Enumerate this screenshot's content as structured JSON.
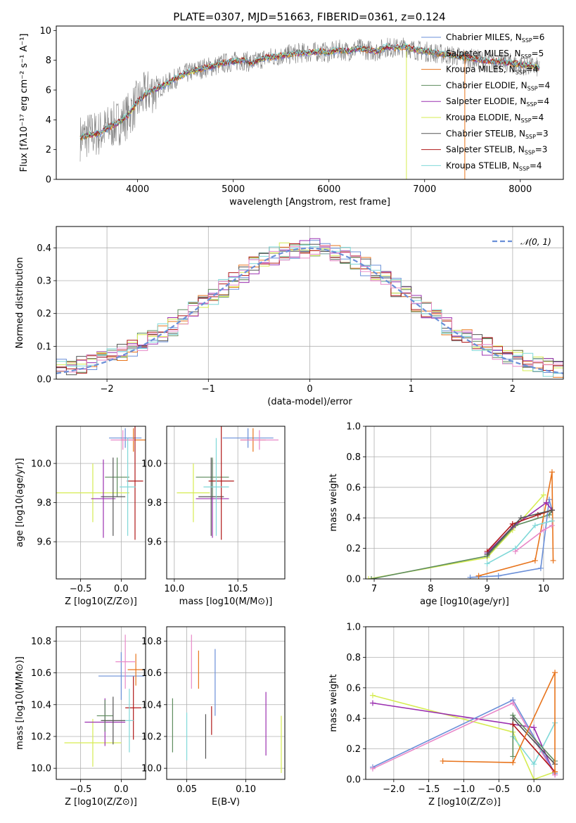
{
  "title": "PLATE=0307, MJD=51663, FIBERID=0361, z=0.124",
  "colors": {
    "Chabrier MILES": "#6a8fd8",
    "Salpeter MILES": "#8a8a8a",
    "Kroupa MILES": "#e8741c",
    "Chabrier ELODIE": "#5e8c5e",
    "Salpeter ELODIE": "#9b30b0",
    "Kroupa ELODIE": "#d6ec52",
    "Chabrier STELIB": "#555555",
    "Salpeter STELIB": "#b01818",
    "Kroupa STELIB": "#7fd8d8",
    "pink": "#e888c8",
    "normal": "#6a8fd8"
  },
  "chart_data": [
    {
      "id": "spectrum",
      "type": "line",
      "xlabel": "wavelength [Angstrom, rest frame]",
      "ylabel": "Flux [fλ10⁻¹⁷ erg cm⁻² s⁻¹ A⁻¹]",
      "xlim": [
        3150,
        8450
      ],
      "ylim": [
        0,
        10.3
      ],
      "xticks": [
        "4000",
        "5000",
        "6000",
        "7000",
        "8000"
      ],
      "yticks": [
        "0",
        "2",
        "4",
        "6",
        "8",
        "10"
      ],
      "legend": [
        "Chabrier MILES, N_SSP=6",
        "Salpeter MILES, N_SSP=5",
        "Kroupa MILES, N_SSP=4",
        "Chabrier ELODIE, N_SSP=4",
        "Salpeter ELODIE, N_SSP=4",
        "Kroupa ELODIE, N_SSP=4",
        "Chabrier STELIB, N_SSP=3",
        "Salpeter STELIB, N_SSP=3",
        "Kroupa STELIB, N_SSP=4"
      ],
      "legend_labels": [
        {
          "name": "Chabrier MILES, N",
          "sub": "SSP",
          "suffix": "=6"
        },
        {
          "name": "Salpeter MILES, N",
          "sub": "SSP",
          "suffix": "=5"
        },
        {
          "name": "Kroupa MILES, N",
          "sub": "SSP",
          "suffix": "=4"
        },
        {
          "name": "Chabrier ELODIE, N",
          "sub": "SSP",
          "suffix": "=4"
        },
        {
          "name": "Salpeter ELODIE, N",
          "sub": "SSP",
          "suffix": "=4"
        },
        {
          "name": "Kroupa ELODIE, N",
          "sub": "SSP",
          "suffix": "=4"
        },
        {
          "name": "Chabrier STELIB, N",
          "sub": "SSP",
          "suffix": "=3"
        },
        {
          "name": "Salpeter STELIB, N",
          "sub": "SSP",
          "suffix": "=3"
        },
        {
          "name": "Kroupa STELIB, N",
          "sub": "SSP",
          "suffix": "=4"
        }
      ],
      "legend_placement": "right",
      "model_x": [
        3400,
        3500,
        3600,
        3700,
        3800,
        3900,
        4000,
        4100,
        4200,
        4300,
        4400,
        4500,
        4600,
        4700,
        4800,
        4900,
        5000,
        5100,
        5200,
        5300,
        5400,
        5500,
        5600,
        5700,
        5800,
        5900,
        6000,
        6100,
        6200,
        6300,
        6400,
        6500,
        6600,
        6700,
        6800,
        6900,
        7000,
        7100,
        7200,
        7300,
        7400,
        7500,
        7600,
        7700,
        7800,
        7900,
        8000,
        8100,
        8200
      ],
      "model_y": [
        2.8,
        3.0,
        3.1,
        3.5,
        3.8,
        4.3,
        5.2,
        5.8,
        6.1,
        6.4,
        6.8,
        7.1,
        7.3,
        7.5,
        7.6,
        7.8,
        7.9,
        8.0,
        7.8,
        8.1,
        8.2,
        8.3,
        8.4,
        8.5,
        8.5,
        8.6,
        8.5,
        8.7,
        8.6,
        8.8,
        8.7,
        8.6,
        8.9,
        8.8,
        8.9,
        8.7,
        8.6,
        8.5,
        8.4,
        8.3,
        8.2,
        8.1,
        8.0,
        7.9,
        7.9,
        7.8,
        7.7,
        7.6,
        7.5
      ]
    },
    {
      "id": "residuals",
      "type": "line",
      "xlabel": "(data-model)/error",
      "ylabel": "Normed distribution",
      "xlim": [
        -2.5,
        2.5
      ],
      "ylim": [
        0,
        0.465
      ],
      "xticks": [
        "−2",
        "−1",
        "0",
        "1",
        "2"
      ],
      "yticks": [
        "0.0",
        "0.1",
        "0.2",
        "0.3",
        "0.4"
      ],
      "legend": [
        "𝒩(0, 1)"
      ],
      "legend_placement": "top-right",
      "grid": true
    },
    {
      "id": "age-vs-Z",
      "type": "scatter",
      "xlabel": "Z [log10(Z/Z⊙)]",
      "ylabel": "age  [log10(age/yr)]",
      "xlim": [
        -0.8,
        0.3
      ],
      "ylim": [
        9.41,
        10.19
      ],
      "xticks": [
        "−0.5",
        "0.0"
      ],
      "yticks": [
        "9.6",
        "9.8",
        "10.0"
      ],
      "grid": true,
      "points": [
        {
          "series": "Chabrier MILES",
          "x": 0.05,
          "y": 10.13,
          "xerr": 0.2,
          "yerr": 0.05
        },
        {
          "series": "Kroupa MILES",
          "x": 0.15,
          "y": 10.12,
          "xerr": 0.15,
          "yerr": 0.06
        },
        {
          "series": "pink",
          "x": 0.02,
          "y": 10.12,
          "xerr": 0.15,
          "yerr": 0.05
        },
        {
          "series": "Kroupa ELODIE",
          "x": -0.35,
          "y": 9.85,
          "xerr": 0.45,
          "yerr": 0.15
        },
        {
          "series": "Salpeter ELODIE",
          "x": -0.22,
          "y": 9.82,
          "xerr": 0.15,
          "yerr": 0.2
        },
        {
          "series": "Chabrier ELODIE",
          "x": -0.05,
          "y": 9.93,
          "xerr": 0.15,
          "yerr": 0.1
        },
        {
          "series": "Chabrier STELIB",
          "x": -0.1,
          "y": 9.83,
          "xerr": 0.15,
          "yerr": 0.2
        },
        {
          "series": "Salpeter STELIB",
          "x": 0.17,
          "y": 9.91,
          "xerr": 0.1,
          "yerr": 0.3
        },
        {
          "series": "Kroupa STELIB",
          "x": 0.08,
          "y": 9.88,
          "xerr": 0.1,
          "yerr": 0.25
        }
      ]
    },
    {
      "id": "age-vs-mass",
      "type": "scatter",
      "xlabel": "mass [log10(M/M⊙)]",
      "ylabel": "",
      "xlim": [
        9.94,
        10.87
      ],
      "ylim": [
        9.41,
        10.19
      ],
      "xticks": [
        "10.0",
        "10.5"
      ],
      "yticks": [
        "9.6",
        "9.8",
        "10.0"
      ],
      "grid": true,
      "points": [
        {
          "series": "Chabrier MILES",
          "x": 10.58,
          "y": 10.13,
          "xerr": 0.2,
          "yerr": 0.05
        },
        {
          "series": "Kroupa MILES",
          "x": 10.62,
          "y": 10.12,
          "xerr": 0.1,
          "yerr": 0.06
        },
        {
          "series": "pink",
          "x": 10.67,
          "y": 10.12,
          "xerr": 0.15,
          "yerr": 0.05
        },
        {
          "series": "Kroupa ELODIE",
          "x": 10.15,
          "y": 9.85,
          "xerr": 0.13,
          "yerr": 0.15
        },
        {
          "series": "Salpeter ELODIE",
          "x": 10.3,
          "y": 9.82,
          "xerr": 0.13,
          "yerr": 0.2
        },
        {
          "series": "Chabrier ELODIE",
          "x": 10.3,
          "y": 9.93,
          "xerr": 0.13,
          "yerr": 0.1
        },
        {
          "series": "Chabrier STELIB",
          "x": 10.29,
          "y": 9.83,
          "xerr": 0.1,
          "yerr": 0.2
        },
        {
          "series": "Salpeter STELIB",
          "x": 10.37,
          "y": 9.91,
          "xerr": 0.1,
          "yerr": 0.3
        },
        {
          "series": "Kroupa STELIB",
          "x": 10.33,
          "y": 9.88,
          "xerr": 0.1,
          "yerr": 0.25
        }
      ]
    },
    {
      "id": "weight-vs-age",
      "type": "line",
      "xlabel": "age  [log10(age/yr)]",
      "ylabel": "mass weight",
      "xlim": [
        6.85,
        10.35
      ],
      "ylim": [
        0,
        1.0
      ],
      "xticks": [
        "7",
        "8",
        "9",
        "10"
      ],
      "yticks": [
        "0.0",
        "0.2",
        "0.4",
        "0.6",
        "0.8",
        "1.0"
      ],
      "grid": true,
      "series": [
        {
          "color": "Kroupa ELODIE",
          "x": [
            6.9,
            9.0,
            9.45,
            10.0
          ],
          "y": [
            0.0,
            0.14,
            0.32,
            0.55
          ]
        },
        {
          "color": "Chabrier ELODIE",
          "x": [
            6.95,
            9.0,
            9.5,
            10.1,
            10.15
          ],
          "y": [
            0.0,
            0.15,
            0.35,
            0.42,
            0.45
          ]
        },
        {
          "color": "Chabrier MILES",
          "x": [
            8.7,
            9.2,
            9.95,
            10.1,
            10.15
          ],
          "y": [
            0.01,
            0.02,
            0.07,
            0.52,
            0.45
          ]
        },
        {
          "color": "Kroupa MILES",
          "x": [
            8.85,
            9.85,
            10.15,
            10.17
          ],
          "y": [
            0.02,
            0.12,
            0.7,
            0.12
          ]
        },
        {
          "color": "Salpeter ELODIE",
          "x": [
            9.0,
            9.45,
            10.05,
            10.15
          ],
          "y": [
            0.17,
            0.34,
            0.5,
            0.45
          ]
        },
        {
          "color": "Salpeter STELIB",
          "x": [
            9.0,
            9.45,
            9.9,
            10.15
          ],
          "y": [
            0.18,
            0.36,
            0.42,
            0.45
          ]
        },
        {
          "color": "Chabrier STELIB",
          "x": [
            9.0,
            9.6,
            10.15
          ],
          "y": [
            0.16,
            0.4,
            0.45
          ]
        },
        {
          "color": "Kroupa STELIB",
          "x": [
            9.0,
            9.5,
            9.85,
            10.15
          ],
          "y": [
            0.1,
            0.2,
            0.35,
            0.38
          ]
        },
        {
          "color": "pink",
          "x": [
            9.5,
            10.0,
            10.15
          ],
          "y": [
            0.18,
            0.32,
            0.35
          ]
        }
      ]
    },
    {
      "id": "mass-vs-Z",
      "type": "scatter",
      "xlabel": "Z [log10(Z/Z⊙)]",
      "ylabel": "mass [log10(M/M⊙)]",
      "xlim": [
        -0.8,
        0.3
      ],
      "ylim": [
        9.93,
        10.89
      ],
      "xticks": [
        "−0.5",
        "0.0"
      ],
      "yticks": [
        "10.0",
        "10.2",
        "10.4",
        "10.6",
        "10.8"
      ],
      "grid": true,
      "points": [
        {
          "series": "Kroupa ELODIE",
          "x": -0.35,
          "y": 10.16,
          "xerr": 0.35,
          "yerr": 0.15
        },
        {
          "series": "Salpeter ELODIE",
          "x": -0.2,
          "y": 10.29,
          "xerr": 0.25,
          "yerr": 0.15
        },
        {
          "series": "Chabrier ELODIE",
          "x": -0.2,
          "y": 10.33,
          "xerr": 0.1,
          "yerr": 0.1
        },
        {
          "series": "Chabrier STELIB",
          "x": -0.1,
          "y": 10.3,
          "xerr": 0.15,
          "yerr": 0.15
        },
        {
          "series": "Salpeter STELIB",
          "x": 0.15,
          "y": 10.38,
          "xerr": 0.1,
          "yerr": 0.2
        },
        {
          "series": "Kroupa STELIB",
          "x": 0.1,
          "y": 10.3,
          "xerr": 0.05,
          "yerr": 0.2
        },
        {
          "series": "Chabrier MILES",
          "x": 0.0,
          "y": 10.58,
          "xerr": 0.28,
          "yerr": 0.15
        },
        {
          "series": "Kroupa MILES",
          "x": 0.18,
          "y": 10.62,
          "xerr": 0.1,
          "yerr": 0.1
        },
        {
          "series": "pink",
          "x": 0.05,
          "y": 10.67,
          "xerr": 0.12,
          "yerr": 0.17
        }
      ]
    },
    {
      "id": "mass-vs-EBV",
      "type": "scatter",
      "xlabel": "E(B-V)",
      "ylabel": "",
      "xlim": [
        0.033,
        0.133
      ],
      "ylim": [
        9.93,
        10.89
      ],
      "xticks": [
        "0.05",
        "0.10"
      ],
      "yticks": [
        "10.0",
        "10.2",
        "10.4",
        "10.6",
        "10.8"
      ],
      "grid": true,
      "points": [
        {
          "series": "Chabrier ELODIE",
          "x": 0.038,
          "y": 10.27,
          "yerr": 0.17
        },
        {
          "series": "Kroupa STELIB",
          "x": 0.05,
          "y": 10.2,
          "yerr": 0.15
        },
        {
          "series": "pink",
          "x": 0.054,
          "y": 10.67,
          "yerr": 0.17
        },
        {
          "series": "Kroupa MILES",
          "x": 0.06,
          "y": 10.62,
          "yerr": 0.12
        },
        {
          "series": "Chabrier STELIB",
          "x": 0.066,
          "y": 10.2,
          "yerr": 0.14
        },
        {
          "series": "Salpeter STELIB",
          "x": 0.071,
          "y": 10.3,
          "yerr": 0.09
        },
        {
          "series": "Chabrier MILES",
          "x": 0.074,
          "y": 10.54,
          "yerr": 0.21
        },
        {
          "series": "Salpeter ELODIE",
          "x": 0.117,
          "y": 10.28,
          "yerr": 0.2
        },
        {
          "series": "Kroupa ELODIE",
          "x": 0.13,
          "y": 10.15,
          "yerr": 0.18
        }
      ]
    },
    {
      "id": "weight-vs-Z",
      "type": "line",
      "xlabel": "Z [log10(Z/Z⊙)]",
      "ylabel": "mass weight",
      "xlim": [
        -2.4,
        0.42
      ],
      "ylim": [
        0,
        1.0
      ],
      "xticks": [
        "−2.0",
        "−1.5",
        "−1.0",
        "−0.5",
        "0.0"
      ],
      "yticks": [
        "0.0",
        "0.2",
        "0.4",
        "0.6",
        "0.8",
        "1.0"
      ],
      "grid": true,
      "series": [
        {
          "color": "Kroupa ELODIE",
          "x": [
            -2.3,
            -0.3,
            0.0,
            0.3
          ],
          "y": [
            0.55,
            0.31,
            0.0,
            0.05
          ]
        },
        {
          "color": "Salpeter ELODIE",
          "x": [
            -2.3,
            0.0,
            0.3
          ],
          "y": [
            0.5,
            0.34,
            0.03
          ]
        },
        {
          "color": "Chabrier MILES",
          "x": [
            -2.3,
            -0.3,
            0.3
          ],
          "y": [
            0.08,
            0.52,
            0.04
          ]
        },
        {
          "color": "pink",
          "x": [
            -2.3,
            -0.3,
            0.3
          ],
          "y": [
            0.07,
            0.5,
            0.03
          ]
        },
        {
          "color": "Kroupa STELIB",
          "x": [
            -0.3,
            0.0,
            0.3
          ],
          "y": [
            0.28,
            0.1,
            0.37
          ]
        },
        {
          "color": "Chabrier ELODIE",
          "x": [
            -0.3,
            -0.3,
            0.3
          ],
          "y": [
            0.15,
            0.42,
            0.12
          ]
        },
        {
          "color": "Chabrier STELIB",
          "x": [
            -0.3,
            0.3
          ],
          "y": [
            0.4,
            0.1
          ]
        },
        {
          "color": "Salpeter STELIB",
          "x": [
            -0.3,
            0.3
          ],
          "y": [
            0.36,
            0.05
          ]
        },
        {
          "color": "Kroupa MILES",
          "x": [
            -1.3,
            -0.3,
            0.3,
            0.3
          ],
          "y": [
            0.12,
            0.11,
            0.7,
            0.05
          ]
        }
      ]
    }
  ]
}
